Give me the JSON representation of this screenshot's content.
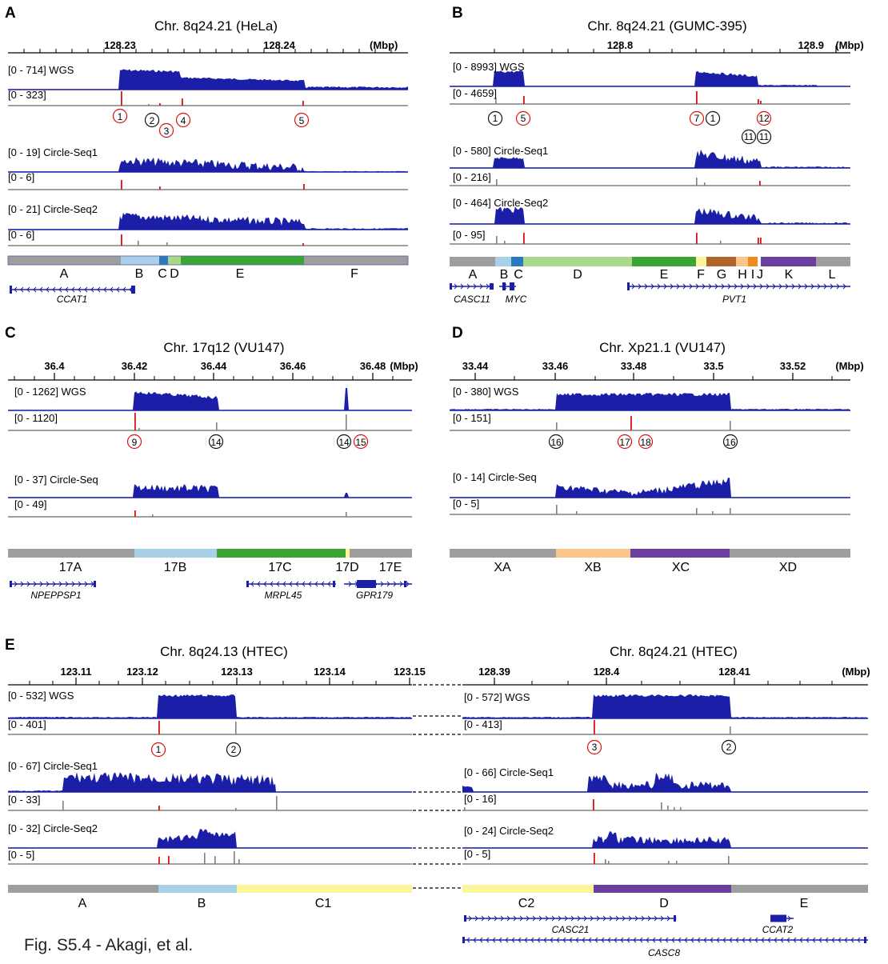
{
  "colors": {
    "coverage": "#1b1fa8",
    "track_line": "#1b1fa8",
    "breakpoint_red": "#e01010",
    "breakpoint_gray": "#808080",
    "seg_gray": "#9e9e9e",
    "seg_lightblue": "#a9d0e8",
    "seg_blue": "#2a7abf",
    "seg_lightgreen": "#a9d88a",
    "seg_green": "#3aa535",
    "seg_yellow": "#fbf59c",
    "seg_brown": "#b0632a",
    "seg_peach": "#fbc58a",
    "seg_orange": "#f08a1c",
    "seg_purple": "#6b3fa0"
  },
  "panels": {
    "A": {
      "label": "A",
      "title": "Chr. 8q24.21 (HeLa)",
      "unit": "(Mbp)",
      "ticks": [
        "128.23",
        "128.24"
      ],
      "tracks": {
        "wgs": "[0 - 714] WGS",
        "wgs_sub": "[0 - 323]",
        "cs1": "[0 - 19] Circle-Seq1",
        "cs1_sub": "[0 - 6]",
        "cs2": "[0 - 21] Circle-Seq2",
        "cs2_sub": "[0 - 6]"
      },
      "markers": [
        "1",
        "2",
        "3",
        "4",
        "5"
      ],
      "segments": [
        "A",
        "B",
        "C",
        "D",
        "E",
        "F"
      ],
      "genes": [
        "CCAT1"
      ]
    },
    "B": {
      "label": "B",
      "title": "Chr. 8q24.21 (GUMC-395)",
      "unit": "(Mbp)",
      "ticks": [
        "128.8",
        "128.9"
      ],
      "tracks": {
        "wgs": "[0 - 8993] WGS",
        "wgs_sub": "[0 - 4659]",
        "cs1": "[0 - 580] Circle-Seq1",
        "cs1_sub": "[0 - 216]",
        "cs2": "[0 - 464] Circle-Seq2",
        "cs2_sub": "[0 - 95]"
      },
      "markers": [
        "1",
        "5",
        "7",
        "1",
        "12",
        "11",
        "11"
      ],
      "segments": [
        "A",
        "B",
        "C",
        "D",
        "E",
        "F",
        "G",
        "H",
        "I",
        "J",
        "K",
        "L"
      ],
      "genes": [
        "CASC11",
        "MYC",
        "PVT1"
      ]
    },
    "C": {
      "label": "C",
      "title": "Chr. 17q12 (VU147)",
      "unit": "(Mbp)",
      "ticks": [
        "36.4",
        "36.42",
        "36.44",
        "36.46",
        "36.48"
      ],
      "tracks": {
        "wgs": "[0 - 1262] WGS",
        "wgs_sub": "[0 - 1120]",
        "cs1": "[0 - 37] Circle-Seq",
        "cs1_sub": "[0 - 49]"
      },
      "markers": [
        "9",
        "14",
        "14",
        "15"
      ],
      "segments": [
        "17A",
        "17B",
        "17C",
        "17D",
        "17E"
      ],
      "genes": [
        "NPEPPSP1",
        "MRPL45",
        "GPR179"
      ]
    },
    "D": {
      "label": "D",
      "title": "Chr. Xp21.1 (VU147)",
      "unit": "(Mbp)",
      "ticks": [
        "33.44",
        "33.46",
        "33.48",
        "33.5",
        "33.52"
      ],
      "tracks": {
        "wgs": "[0 - 380] WGS",
        "wgs_sub": "[0 - 151]",
        "cs1": "[0 - 14] Circle-Seq",
        "cs1_sub": "[0 - 5]"
      },
      "markers": [
        "16",
        "17",
        "18",
        "16"
      ],
      "segments": [
        "XA",
        "XB",
        "XC",
        "XD"
      ],
      "genes": []
    },
    "E": {
      "label": "E",
      "left": {
        "title": "Chr. 8q24.13 (HTEC)",
        "ticks": [
          "123.11",
          "123.12",
          "123.13",
          "123.14",
          "123.15"
        ],
        "tracks": {
          "wgs": "[0 - 532] WGS",
          "wgs_sub": "[0 - 401]",
          "cs1": "[0 - 67] Circle-Seq1",
          "cs1_sub": "[0 - 33]",
          "cs2": "[0 - 32] Circle-Seq2",
          "cs2_sub": "[0 - 5]"
        },
        "markers": [
          "1",
          "2"
        ],
        "segments": [
          "A",
          "B",
          "C1"
        ]
      },
      "right": {
        "title": "Chr. 8q24.21 (HTEC)",
        "unit": "(Mbp)",
        "ticks": [
          "128.39",
          "128.4",
          "128.41"
        ],
        "tracks": {
          "wgs": "[0 - 572] WGS",
          "wgs_sub": "[0 - 413]",
          "cs1": "[0 - 66] Circle-Seq1",
          "cs1_sub": "[0 - 16]",
          "cs2": "[0 - 24] Circle-Seq2",
          "cs2_sub": "[0 - 5]"
        },
        "markers": [
          "3",
          "2"
        ],
        "segments": [
          "C2",
          "D",
          "E"
        ],
        "genes": [
          "CASC21",
          "CCAT2",
          "CASC8"
        ]
      }
    }
  },
  "caption": "Fig. S5.4 - Akagi, et al."
}
